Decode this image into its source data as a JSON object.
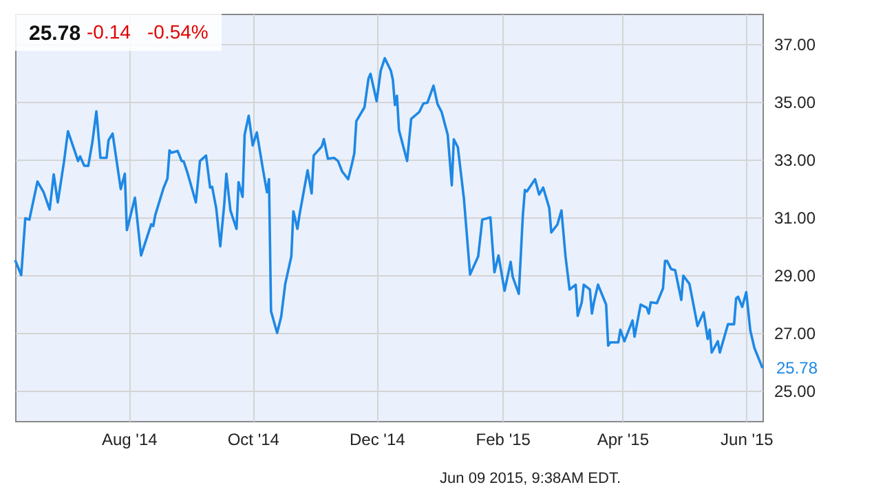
{
  "chart_data": {
    "type": "line",
    "annotations": [
      "25.78",
      "-0.14",
      "-0.54%",
      "Jun 09 2015, 9:38AM EDT.",
      {
        "text": "25.78",
        "x": "2015-06-09",
        "y": 25.78
      }
    ],
    "x": [
      "2014-06-06",
      "2014-06-09",
      "2014-06-11",
      "2014-06-13",
      "2014-06-17",
      "2014-06-20",
      "2014-06-23",
      "2014-06-25",
      "2014-06-27",
      "2014-06-30",
      "2014-07-02",
      "2014-07-03",
      "2014-07-07",
      "2014-07-08",
      "2014-07-10",
      "2014-07-12",
      "2014-07-14",
      "2014-07-16",
      "2014-07-18",
      "2014-07-21",
      "2014-07-22",
      "2014-07-24",
      "2014-07-28",
      "2014-07-30",
      "2014-07-31",
      "2014-08-04",
      "2014-08-07",
      "2014-08-12",
      "2014-08-13",
      "2014-08-14",
      "2014-08-18",
      "2014-08-20",
      "2014-08-21",
      "2014-08-22",
      "2014-08-25",
      "2014-08-27",
      "2014-08-28",
      "2014-08-30",
      "2014-09-03",
      "2014-09-05",
      "2014-09-08",
      "2014-09-10",
      "2014-09-11",
      "2014-09-13",
      "2014-09-15",
      "2014-09-17",
      "2014-09-18",
      "2014-09-20",
      "2014-09-23",
      "2014-09-24",
      "2014-09-26",
      "2014-09-27",
      "2014-09-29",
      "2014-10-01",
      "2014-10-03",
      "2014-10-06",
      "2014-10-08",
      "2014-10-09",
      "2014-10-10",
      "2014-10-13",
      "2014-10-15",
      "2014-10-17",
      "2014-10-20",
      "2014-10-21",
      "2014-10-23",
      "2014-10-24",
      "2014-10-28",
      "2014-10-30",
      "2014-10-31",
      "2014-11-04",
      "2014-11-05",
      "2014-11-07",
      "2014-11-10",
      "2014-11-12",
      "2014-11-14",
      "2014-11-17",
      "2014-11-19",
      "2014-11-20",
      "2014-11-21",
      "2014-11-25",
      "2014-11-27",
      "2014-11-28",
      "2014-12-01",
      "2014-12-03",
      "2014-12-05",
      "2014-12-08",
      "2014-12-09",
      "2014-12-10",
      "2014-12-11",
      "2014-12-12",
      "2014-12-16",
      "2014-12-18",
      "2014-12-22",
      "2014-12-24",
      "2014-12-26",
      "2014-12-29",
      "2014-12-31",
      "2015-01-02",
      "2015-01-05",
      "2015-01-07",
      "2015-01-08",
      "2015-01-10",
      "2015-01-13",
      "2015-01-16",
      "2015-01-20",
      "2015-01-22",
      "2015-01-26",
      "2015-01-28",
      "2015-01-30",
      "2015-02-02",
      "2015-02-05",
      "2015-02-06",
      "2015-02-09",
      "2015-02-11",
      "2015-02-12",
      "2015-02-13",
      "2015-02-17",
      "2015-02-19",
      "2015-02-21",
      "2015-02-24",
      "2015-02-25",
      "2015-02-28",
      "2015-03-02",
      "2015-03-04",
      "2015-03-06",
      "2015-03-09",
      "2015-03-10",
      "2015-03-12",
      "2015-03-13",
      "2015-03-16",
      "2015-03-17",
      "2015-03-18",
      "2015-03-20",
      "2015-03-24",
      "2015-03-25",
      "2015-03-26",
      "2015-03-30",
      "2015-03-31",
      "2015-04-02",
      "2015-04-06",
      "2015-04-07",
      "2015-04-10",
      "2015-04-13",
      "2015-04-14",
      "2015-04-15",
      "2015-04-18",
      "2015-04-21",
      "2015-04-22",
      "2015-04-23",
      "2015-04-25",
      "2015-04-27",
      "2015-04-30",
      "2015-05-01",
      "2015-05-04",
      "2015-05-06",
      "2015-05-08",
      "2015-05-11",
      "2015-05-13",
      "2015-05-14",
      "2015-05-15",
      "2015-05-18",
      "2015-05-19",
      "2015-05-23",
      "2015-05-26",
      "2015-05-27",
      "2015-05-28",
      "2015-05-30",
      "2015-06-01",
      "2015-06-03",
      "2015-06-05",
      "2015-06-09"
    ],
    "series": [
      {
        "color": "#1e88e5",
        "values": [
          29.52,
          29.0,
          30.97,
          30.92,
          32.24,
          31.87,
          31.27,
          32.49,
          31.52,
          32.9,
          33.98,
          33.78,
          32.95,
          33.11,
          32.79,
          32.78,
          33.59,
          34.67,
          33.06,
          33.06,
          33.67,
          33.9,
          31.98,
          32.51,
          30.56,
          31.68,
          29.68,
          30.76,
          30.7,
          31.08,
          32.0,
          32.35,
          33.32,
          33.24,
          33.3,
          32.95,
          32.94,
          32.51,
          31.52,
          32.95,
          33.14,
          32.03,
          32.06,
          31.32,
          30.0,
          31.48,
          32.51,
          31.24,
          30.6,
          32.22,
          31.71,
          33.86,
          34.52,
          33.49,
          33.94,
          32.67,
          31.87,
          32.32,
          27.75,
          27.0,
          27.56,
          28.7,
          29.65,
          31.21,
          30.6,
          31.08,
          32.63,
          31.83,
          33.14,
          33.46,
          33.71,
          33.03,
          33.06,
          32.95,
          32.59,
          32.32,
          32.9,
          33.22,
          34.33,
          34.81,
          35.81,
          35.97,
          35.02,
          36.08,
          36.51,
          36.08,
          35.76,
          34.89,
          35.21,
          34.02,
          32.95,
          34.41,
          34.65,
          34.94,
          34.97,
          35.56,
          34.92,
          34.65,
          33.86,
          32.11,
          33.7,
          33.43,
          31.63,
          29.02,
          29.65,
          30.92,
          31.0,
          29.1,
          29.68,
          28.46,
          29.46,
          28.94,
          28.35,
          31.08,
          31.95,
          31.9,
          32.32,
          31.79,
          32.03,
          31.32,
          30.48,
          30.75,
          31.24,
          29.65,
          28.5,
          28.67,
          27.59,
          28.06,
          28.67,
          28.5,
          27.67,
          28.06,
          28.67,
          27.98,
          26.56,
          26.67,
          26.67,
          27.11,
          26.71,
          27.43,
          26.87,
          27.98,
          27.87,
          27.67,
          28.06,
          28.03,
          28.54,
          29.49,
          29.49,
          29.21,
          29.17,
          28.14,
          28.98,
          28.7,
          27.98,
          27.24,
          27.71,
          26.79,
          27.11,
          26.32,
          26.71,
          26.32,
          27.3,
          27.3,
          28.19,
          28.25,
          27.9,
          28.41,
          27.08,
          26.48,
          25.78
        ]
      }
    ],
    "xlim": [
      "2014-06-06",
      "2015-06-09"
    ],
    "xticks": [
      {
        "value": "2014-08-01",
        "label": "Aug '14"
      },
      {
        "value": "2014-10-01",
        "label": "Oct '14"
      },
      {
        "value": "2014-12-01",
        "label": "Dec '14"
      },
      {
        "value": "2015-02-01",
        "label": "Feb '15"
      },
      {
        "value": "2015-04-01",
        "label": "Apr '15"
      },
      {
        "value": "2015-06-01",
        "label": "Jun '15"
      }
    ],
    "ylim": [
      23.95,
      38.05
    ],
    "yticks": [
      {
        "value": 25,
        "label": "25.00"
      },
      {
        "value": 27,
        "label": "27.00"
      },
      {
        "value": 29,
        "label": "29.00"
      },
      {
        "value": 31,
        "label": "31.00"
      },
      {
        "value": 33,
        "label": "33.00"
      },
      {
        "value": 35,
        "label": "35.00"
      },
      {
        "value": 37,
        "label": "37.00"
      }
    ],
    "grid": true,
    "line_style": "solid",
    "marker": "none"
  }
}
